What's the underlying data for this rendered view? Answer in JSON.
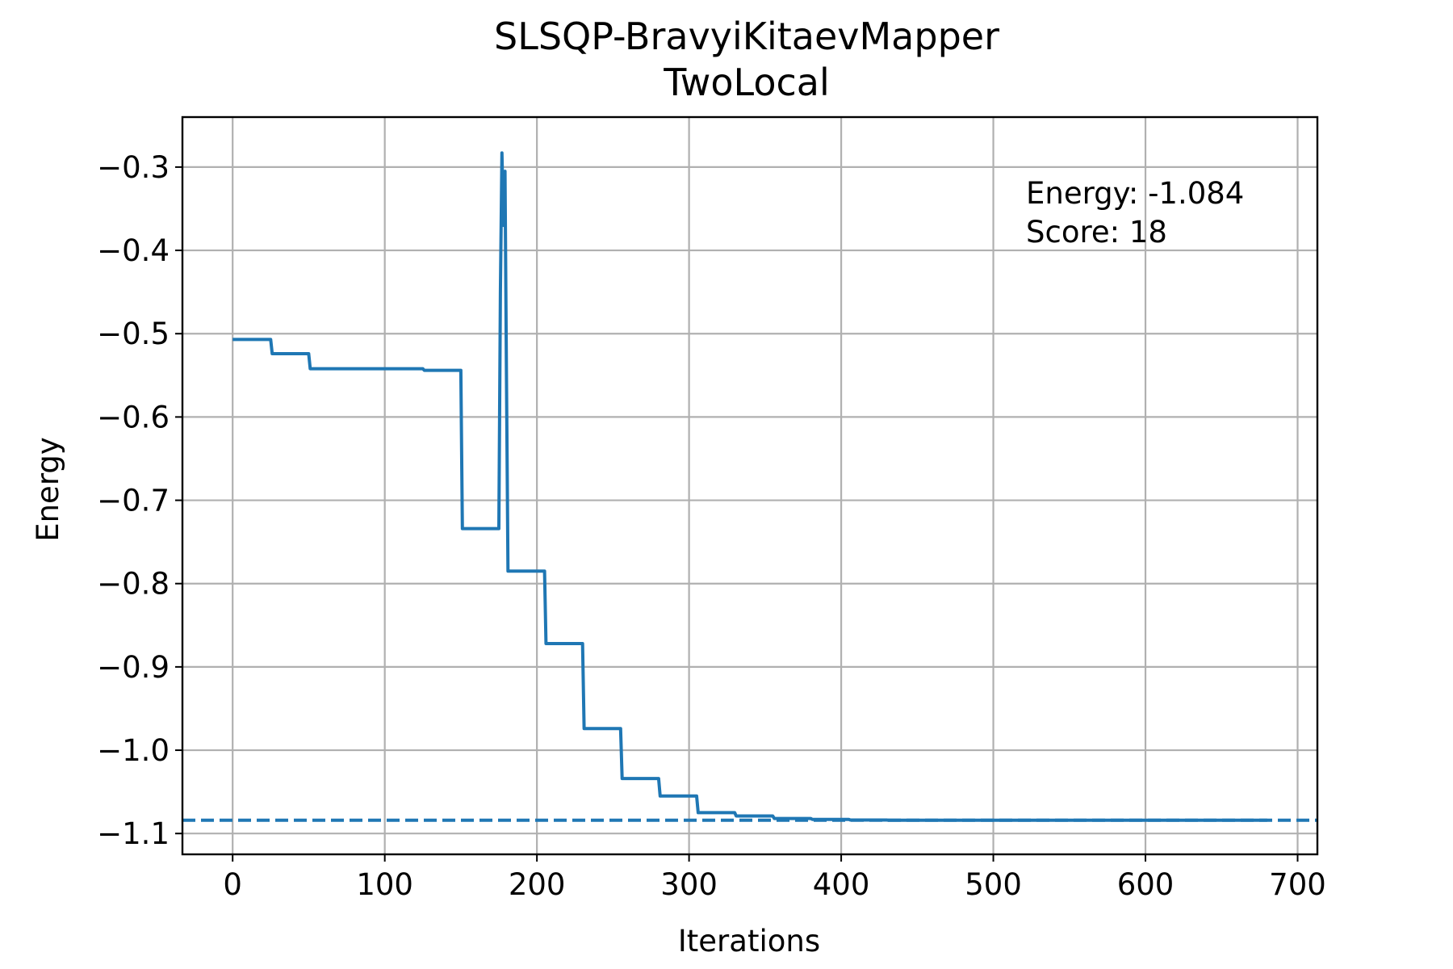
{
  "chart_data": {
    "type": "line",
    "title": [
      "SLSQP-BravyiKitaevMapper",
      "TwoLocal"
    ],
    "xlabel": "Iterations",
    "ylabel": "Energy",
    "xlim": [
      -33,
      713
    ],
    "ylim": [
      -1.125,
      -0.24
    ],
    "xticks": [
      0,
      100,
      200,
      300,
      400,
      500,
      600,
      700
    ],
    "xtick_labels": [
      "0",
      "100",
      "200",
      "300",
      "400",
      "500",
      "600",
      "700"
    ],
    "yticks": [
      -1.1,
      -1.0,
      -0.9,
      -0.8,
      -0.7,
      -0.6,
      -0.5,
      -0.4,
      -0.3
    ],
    "ytick_labels": [
      "−1.1",
      "−1.0",
      "−0.9",
      "−0.8",
      "−0.7",
      "−0.6",
      "−0.5",
      "−0.4",
      "−0.3"
    ],
    "grid": true,
    "line_color": "#1f77b4",
    "annotation": [
      "Energy: -1.084",
      "Score: 18"
    ],
    "reference_line": {
      "y": -1.084,
      "style": "dashed"
    },
    "series": [
      {
        "x": [
          0,
          25,
          26,
          50,
          51,
          125,
          126,
          150,
          151,
          175,
          176,
          177,
          178,
          179,
          180,
          181,
          205,
          206,
          230,
          231,
          255,
          256,
          280,
          281,
          305,
          306,
          330,
          331,
          355,
          356,
          380,
          381,
          405,
          406,
          430,
          431,
          680
        ],
        "y": [
          -0.507,
          -0.507,
          -0.524,
          -0.524,
          -0.542,
          -0.542,
          -0.544,
          -0.544,
          -0.734,
          -0.734,
          -0.45,
          -0.283,
          -0.37,
          -0.305,
          -0.55,
          -0.785,
          -0.785,
          -0.872,
          -0.872,
          -0.974,
          -0.974,
          -1.034,
          -1.034,
          -1.055,
          -1.055,
          -1.075,
          -1.075,
          -1.079,
          -1.079,
          -1.082,
          -1.082,
          -1.083,
          -1.083,
          -1.0838,
          -1.0838,
          -1.084,
          -1.084
        ]
      }
    ]
  }
}
